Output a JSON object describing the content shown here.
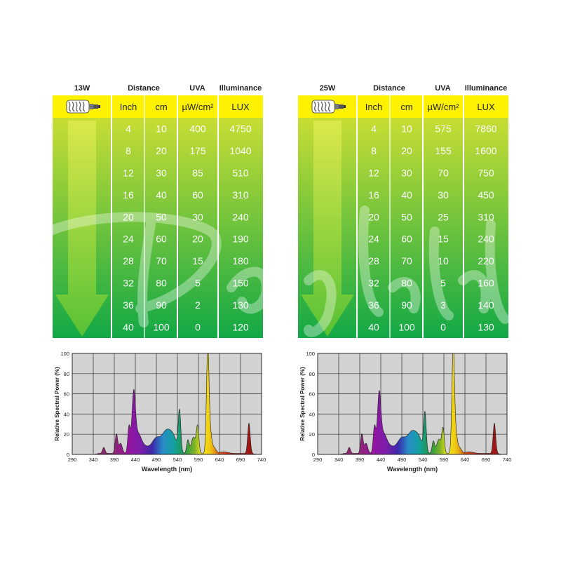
{
  "tables": [
    {
      "id": "13w",
      "wattage_label": "13W",
      "headers": {
        "distance": "Distance",
        "uva": "UVA",
        "illuminance": "Illuminance"
      },
      "units": {
        "inch": "Inch",
        "cm": "cm",
        "uva": "µW/cm²",
        "lux": "LUX"
      },
      "rows": [
        {
          "inch": "4",
          "cm": "10",
          "uva": "400",
          "lux": "4750"
        },
        {
          "inch": "8",
          "cm": "20",
          "uva": "175",
          "lux": "1040"
        },
        {
          "inch": "12",
          "cm": "30",
          "uva": "85",
          "lux": "510"
        },
        {
          "inch": "16",
          "cm": "40",
          "uva": "60",
          "lux": "310"
        },
        {
          "inch": "20",
          "cm": "50",
          "uva": "30",
          "lux": "240"
        },
        {
          "inch": "24",
          "cm": "60",
          "uva": "20",
          "lux": "190"
        },
        {
          "inch": "28",
          "cm": "70",
          "uva": "15",
          "lux": "180"
        },
        {
          "inch": "32",
          "cm": "80",
          "uva": "5",
          "lux": "150"
        },
        {
          "inch": "36",
          "cm": "90",
          "uva": "2",
          "lux": "130"
        },
        {
          "inch": "40",
          "cm": "100",
          "uva": "0",
          "lux": "120"
        }
      ]
    },
    {
      "id": "25w",
      "wattage_label": "25W",
      "headers": {
        "distance": "Distance",
        "uva": "UVA",
        "illuminance": "Illuminance"
      },
      "units": {
        "inch": "Inch",
        "cm": "cm",
        "uva": "µW/cm²",
        "lux": "LUX"
      },
      "rows": [
        {
          "inch": "4",
          "cm": "10",
          "uva": "575",
          "lux": "7860"
        },
        {
          "inch": "8",
          "cm": "20",
          "uva": "155",
          "lux": "1600"
        },
        {
          "inch": "12",
          "cm": "30",
          "uva": "70",
          "lux": "750"
        },
        {
          "inch": "16",
          "cm": "40",
          "uva": "30",
          "lux": "450"
        },
        {
          "inch": "20",
          "cm": "50",
          "uva": "25",
          "lux": "310"
        },
        {
          "inch": "24",
          "cm": "60",
          "uva": "15",
          "lux": "240"
        },
        {
          "inch": "28",
          "cm": "70",
          "uva": "10",
          "lux": "220"
        },
        {
          "inch": "32",
          "cm": "80",
          "uva": "5",
          "lux": "160"
        },
        {
          "inch": "36",
          "cm": "90",
          "uva": "3",
          "lux": "140"
        },
        {
          "inch": "40",
          "cm": "100",
          "uva": "0",
          "lux": "130"
        }
      ]
    }
  ],
  "colors": {
    "header_yellow": "#fff200",
    "table_top": "#c8dd34",
    "table_bottom": "#12a846",
    "arrow": "#8dd13a",
    "plot_bg": "#d2d2d2",
    "grid": "#2a2a2a"
  },
  "icons": {
    "bulb": "spiral-cfl-bulb-icon"
  },
  "chart_data": [
    {
      "type": "area",
      "id": "spectrum-13w",
      "xlabel": "Wavelength (nm)",
      "ylabel": "Relative Spectral Power (%)",
      "xlim": [
        290,
        740
      ],
      "ylim": [
        0,
        100
      ],
      "xticks": [
        "290",
        "340",
        "390",
        "440",
        "490",
        "540",
        "590",
        "640",
        "690",
        "740"
      ],
      "yticks": [
        "0",
        "20",
        "40",
        "60",
        "80",
        "100"
      ],
      "grid": true,
      "peaks": [
        {
          "x": 365,
          "w": 3,
          "h": 6
        },
        {
          "x": 395,
          "w": 3,
          "h": 19
        },
        {
          "x": 405,
          "w": 4,
          "h": 10
        },
        {
          "x": 425,
          "w": 3,
          "h": 26
        },
        {
          "x": 436,
          "w": 4,
          "h": 53
        },
        {
          "x": 445,
          "w": 8,
          "h": 16
        },
        {
          "x": 460,
          "w": 14,
          "h": 7
        },
        {
          "x": 490,
          "w": 10,
          "h": 14
        },
        {
          "x": 513,
          "w": 10,
          "h": 20
        },
        {
          "x": 530,
          "w": 9,
          "h": 15
        },
        {
          "x": 545,
          "w": 3,
          "h": 40
        },
        {
          "x": 565,
          "w": 3,
          "h": 13
        },
        {
          "x": 578,
          "w": 5,
          "h": 16
        },
        {
          "x": 588,
          "w": 3,
          "h": 26
        },
        {
          "x": 612,
          "w": 3,
          "h": 100
        },
        {
          "x": 618,
          "w": 4,
          "h": 20
        },
        {
          "x": 628,
          "w": 4,
          "h": 5
        },
        {
          "x": 650,
          "w": 10,
          "h": 1.5
        },
        {
          "x": 710,
          "w": 3,
          "h": 30
        }
      ]
    },
    {
      "type": "area",
      "id": "spectrum-25w",
      "xlabel": "Wavelength (nm)",
      "ylabel": "Relative Spectral Power (%)",
      "xlim": [
        290,
        740
      ],
      "ylim": [
        0,
        100
      ],
      "xticks": [
        "290",
        "340",
        "390",
        "440",
        "490",
        "540",
        "590",
        "640",
        "690",
        "740"
      ],
      "yticks": [
        "0",
        "20",
        "40",
        "60",
        "80",
        "100"
      ],
      "grid": true,
      "peaks": [
        {
          "x": 365,
          "w": 3,
          "h": 6
        },
        {
          "x": 395,
          "w": 3,
          "h": 19
        },
        {
          "x": 405,
          "w": 4,
          "h": 10
        },
        {
          "x": 425,
          "w": 3,
          "h": 26
        },
        {
          "x": 436,
          "w": 4,
          "h": 52
        },
        {
          "x": 445,
          "w": 8,
          "h": 16
        },
        {
          "x": 460,
          "w": 14,
          "h": 7
        },
        {
          "x": 490,
          "w": 10,
          "h": 14
        },
        {
          "x": 513,
          "w": 10,
          "h": 19
        },
        {
          "x": 530,
          "w": 9,
          "h": 14
        },
        {
          "x": 545,
          "w": 3,
          "h": 38
        },
        {
          "x": 565,
          "w": 3,
          "h": 12
        },
        {
          "x": 578,
          "w": 5,
          "h": 14
        },
        {
          "x": 588,
          "w": 3,
          "h": 24
        },
        {
          "x": 612,
          "w": 3,
          "h": 100
        },
        {
          "x": 618,
          "w": 4,
          "h": 20
        },
        {
          "x": 628,
          "w": 4,
          "h": 5
        },
        {
          "x": 650,
          "w": 10,
          "h": 1.5
        },
        {
          "x": 710,
          "w": 3,
          "h": 30
        }
      ]
    }
  ]
}
